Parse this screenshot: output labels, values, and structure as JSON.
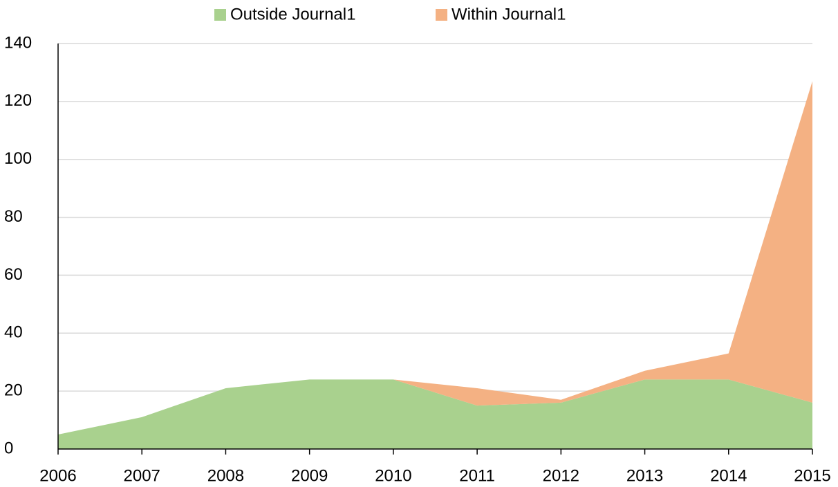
{
  "chart_data": {
    "type": "stacked_area",
    "categories": [
      "2006",
      "2007",
      "2008",
      "2009",
      "2010",
      "2011",
      "2012",
      "2013",
      "2014",
      "2015"
    ],
    "series": [
      {
        "name": "Outside Journal1",
        "color": "#a9d18e",
        "values": [
          5,
          11,
          21,
          24,
          24,
          15,
          16,
          24,
          24,
          16
        ]
      },
      {
        "name": "Within Journal1",
        "color": "#f4b183",
        "values": [
          0,
          0,
          0,
          0,
          0,
          6,
          1,
          3,
          9,
          111
        ]
      }
    ],
    "ylim": [
      0,
      140
    ],
    "yticks": [
      0,
      20,
      40,
      60,
      80,
      100,
      120,
      140
    ],
    "grid": true,
    "legend": "top"
  }
}
